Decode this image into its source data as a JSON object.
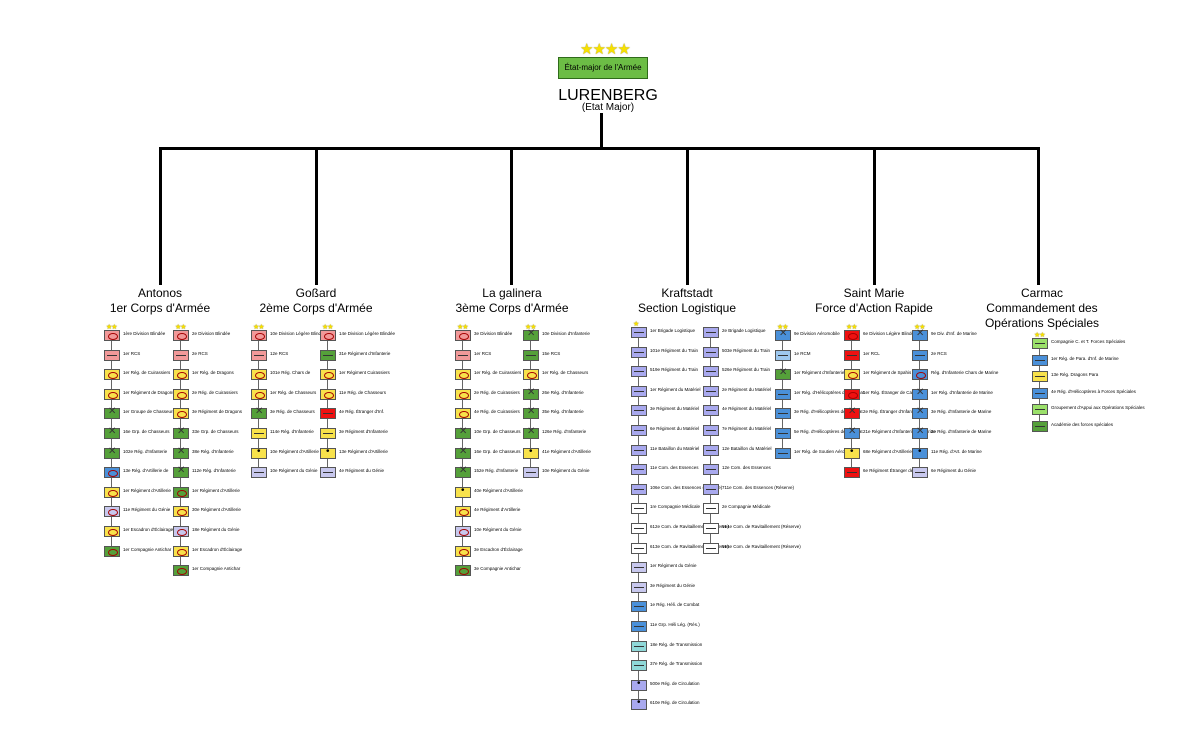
{
  "hq": {
    "stars": "★★★★",
    "label": "État-major de l'Armée",
    "title": "LURENBERG",
    "subtitle": "(Etat Major)"
  },
  "corps": [
    {
      "line1": "Antonos",
      "line2": "1er Corps d'Armée",
      "columns": [
        [
          {
            "stars": "★★",
            "label": "1ère Division Blindée",
            "color": "#f19999",
            "sym": "oval"
          },
          {
            "label": "1er RCS",
            "color": "#f19999",
            "sym": "line"
          },
          {
            "label": "1er Rég. de Cuirassiers",
            "color": "#f8e24b",
            "sym": "oval"
          },
          {
            "label": "1er Régiment de Dragons",
            "color": "#f8e24b",
            "sym": "oval"
          },
          {
            "label": "1er Groupe de Chasseurs",
            "color": "#55a03a",
            "sym": "cross"
          },
          {
            "label": "16e Grp. de Chasseurs",
            "color": "#55a03a",
            "sym": "cross"
          },
          {
            "label": "102e Rég. d'Infanterie",
            "color": "#55a03a",
            "sym": "cross"
          },
          {
            "label": "13e Rég. d'Artillerie de",
            "color": "#4a90d9",
            "sym": "oval"
          },
          {
            "label": "1er Régiment d'Artillerie",
            "color": "#f8e24b",
            "sym": "oval"
          },
          {
            "label": "11e Régiment du Génie",
            "color": "#c8c8ee",
            "sym": "oval"
          },
          {
            "label": "1er Escadron d'Éclairage",
            "color": "#f8e24b",
            "sym": "oval"
          },
          {
            "label": "1er Compagnie Antichar",
            "color": "#55a03a",
            "sym": "oval"
          }
        ],
        [
          {
            "stars": "★★",
            "label": "2e Division Blindée",
            "color": "#f19999",
            "sym": "oval"
          },
          {
            "label": "2e RCS",
            "color": "#f19999",
            "sym": "line"
          },
          {
            "label": "1er Rég. de Dragons",
            "color": "#f8e24b",
            "sym": "oval"
          },
          {
            "label": "2e Rég. de Cuirassiers",
            "color": "#f8e24b",
            "sym": "oval"
          },
          {
            "label": "3e Régiment de Dragons",
            "color": "#f8e24b",
            "sym": "oval"
          },
          {
            "label": "33e Grp. de Chasseurs",
            "color": "#55a03a",
            "sym": "cross"
          },
          {
            "label": "38e Rég. d'Infanterie",
            "color": "#55a03a",
            "sym": "cross"
          },
          {
            "label": "112e Rég. d'Infanterie",
            "color": "#55a03a",
            "sym": "cross"
          },
          {
            "label": "1er Régiment d'Artillerie",
            "color": "#55a03a",
            "sym": "oval"
          },
          {
            "label": "30e Régiment d'Artillerie",
            "color": "#f8e24b",
            "sym": "oval"
          },
          {
            "label": "18e Régiment du Génie",
            "color": "#c8c8ee",
            "sym": "oval"
          },
          {
            "label": "1er Escadron d'Éclairage",
            "color": "#f8e24b",
            "sym": "oval"
          },
          {
            "label": "1er Compagnie Antichar",
            "color": "#55a03a",
            "sym": "oval"
          }
        ]
      ]
    },
    {
      "line1": "Goßard",
      "line2": "2ème Corps d'Armée",
      "columns": [
        [
          {
            "stars": "★★",
            "label": "10e Division Légère Blindée",
            "color": "#f19999",
            "sym": "oval"
          },
          {
            "label": "12e RCS",
            "color": "#f19999",
            "sym": "line"
          },
          {
            "label": "101e Rég. Chars de",
            "color": "#f8e24b",
            "sym": "oval"
          },
          {
            "label": "1er Rég. de Chasseurs",
            "color": "#f8e24b",
            "sym": "oval"
          },
          {
            "label": "3e Rég. de Chasseurs",
            "color": "#55a03a",
            "sym": "cross"
          },
          {
            "label": "114e Rég. d'Infanterie",
            "color": "#f8e24b",
            "sym": "line"
          },
          {
            "label": "10e Régiment d'Artillerie",
            "color": "#f8e24b",
            "sym": "dot"
          },
          {
            "label": "10e Régiment du Génie",
            "color": "#c8c8ee",
            "sym": "line"
          }
        ],
        [
          {
            "stars": "★★",
            "label": "14e Division Légère Blindée",
            "color": "#f19999",
            "sym": "oval"
          },
          {
            "label": "31e Régiment d'Infanterie",
            "color": "#55a03a",
            "sym": "line"
          },
          {
            "label": "1er Régiment Cuirassiers",
            "color": "#f8e24b",
            "sym": "oval"
          },
          {
            "label": "11e Rég. de Chasseurs",
            "color": "#f8e24b",
            "sym": "oval"
          },
          {
            "label": "4e Rég. Étranger d'Inf.",
            "color": "#ee1111",
            "sym": "line"
          },
          {
            "label": "3e Régiment d'Infanterie",
            "color": "#f8e24b",
            "sym": "line"
          },
          {
            "label": "13e Régiment d'Artillerie",
            "color": "#f8e24b",
            "sym": "dot"
          },
          {
            "label": "4e Régiment du Génie",
            "color": "#c8c8ee",
            "sym": "line"
          }
        ]
      ]
    },
    {
      "line1": "La galinera",
      "line2": "3ème Corps d'Armée",
      "columns": [
        [
          {
            "stars": "★★",
            "label": "3e Division Blindée",
            "color": "#f19999",
            "sym": "oval"
          },
          {
            "label": "1er RCS",
            "color": "#f19999",
            "sym": "line"
          },
          {
            "label": "1er Rég. de Cuirassiers",
            "color": "#f8e24b",
            "sym": "oval"
          },
          {
            "label": "2e Rég. de Cuirassiers",
            "color": "#f8e24b",
            "sym": "oval"
          },
          {
            "label": "4e Rég. de Cuirassiers",
            "color": "#f8e24b",
            "sym": "oval"
          },
          {
            "label": "10e Grp. de Chasseurs",
            "color": "#55a03a",
            "sym": "cross"
          },
          {
            "label": "16e Grp. de Chasseurs",
            "color": "#55a03a",
            "sym": "cross"
          },
          {
            "label": "152e Rég. d'Infanterie",
            "color": "#55a03a",
            "sym": "cross"
          },
          {
            "label": "40e Régiment d'Artillerie",
            "color": "#f8e24b",
            "sym": "dot"
          },
          {
            "label": "4e Régiment d'Artillerie",
            "color": "#f8e24b",
            "sym": "oval"
          },
          {
            "label": "10e Régiment du Génie",
            "color": "#c8c8ee",
            "sym": "oval"
          },
          {
            "label": "3e Escadron d'Éclairage",
            "color": "#f8e24b",
            "sym": "oval"
          },
          {
            "label": "3e Compagnie Antichar",
            "color": "#55a03a",
            "sym": "oval"
          }
        ],
        [
          {
            "stars": "★★",
            "label": "10e Division d'Infanterie",
            "color": "#55a03a",
            "sym": "cross"
          },
          {
            "label": "15e RCS",
            "color": "#55a03a",
            "sym": "line"
          },
          {
            "label": "1er Rég. de Chasseurs",
            "color": "#f8e24b",
            "sym": "oval"
          },
          {
            "label": "26e Rég. d'Infanterie",
            "color": "#55a03a",
            "sym": "cross"
          },
          {
            "label": "35e Rég. d'Infanterie",
            "color": "#55a03a",
            "sym": "cross"
          },
          {
            "label": "126e Rég. d'Infanterie",
            "color": "#55a03a",
            "sym": "cross"
          },
          {
            "label": "41e Régiment d'Artillerie",
            "color": "#f8e24b",
            "sym": "dot"
          },
          {
            "label": "10e Régiment du Génie",
            "color": "#c8c8ee",
            "sym": "line"
          }
        ]
      ]
    },
    {
      "line1": "Kraftstadt",
      "line2": "Section Logistique",
      "columns": [
        [
          {
            "stars": "★",
            "label": "1er Brigade Logistique",
            "color": "#a9a9ee",
            "sym": "line"
          },
          {
            "label": "101e Régiment du Train",
            "color": "#a9a9ee",
            "sym": "line"
          },
          {
            "label": "519e Régiment du Train",
            "color": "#a9a9ee",
            "sym": "line"
          },
          {
            "label": "1er Régiment du Matériel",
            "color": "#a9a9ee",
            "sym": "line"
          },
          {
            "label": "3e Régiment du Matériel",
            "color": "#a9a9ee",
            "sym": "line"
          },
          {
            "label": "6e Régiment du Matériel",
            "color": "#a9a9ee",
            "sym": "line"
          },
          {
            "label": "11e Bataillon du Matériel",
            "color": "#a9a9ee",
            "sym": "line"
          },
          {
            "label": "11e Com. des Essences",
            "color": "#a9a9ee",
            "sym": "line"
          },
          {
            "label": "106e Com. des Essences (Réserve)",
            "color": "#a9a9ee",
            "sym": "line"
          },
          {
            "label": "1re Compagnie Médicale",
            "color": "#ffffff",
            "sym": "line"
          },
          {
            "label": "612e Com. de Ravitaillement (Réserve)",
            "color": "#ffffff",
            "sym": "line"
          },
          {
            "label": "613e Com. de Ravitaillement (Réserve)",
            "color": "#ffffff",
            "sym": "line"
          },
          {
            "label": "1er Régiment du Génie",
            "color": "#c8c8ee",
            "sym": "line"
          },
          {
            "label": "3e Régiment du Génie",
            "color": "#c8c8ee",
            "sym": "line"
          },
          {
            "label": "1e Rég. Héli. de Combat",
            "color": "#4a90d9",
            "sym": "line"
          },
          {
            "label": "11e Grp. Héli Lég. (Rés.)",
            "color": "#4a90d9",
            "sym": "line"
          },
          {
            "label": "18e Rég. de Transmission",
            "color": "#8fd8d8",
            "sym": "line"
          },
          {
            "label": "37e Rég. de Transmission",
            "color": "#8fd8d8",
            "sym": "line"
          },
          {
            "label": "500e Rég. de Circulation",
            "color": "#a9a9ee",
            "sym": "dot"
          },
          {
            "label": "610e Rég. de Circulation",
            "color": "#a9a9ee",
            "sym": "dot"
          }
        ],
        [
          {
            "label": "2e Brigade Logistique",
            "color": "#a9a9ee",
            "sym": "line"
          },
          {
            "label": "503e Régiment du Train",
            "color": "#a9a9ee",
            "sym": "line"
          },
          {
            "label": "526e Régiment du Train",
            "color": "#a9a9ee",
            "sym": "line"
          },
          {
            "label": "2e Régiment du Matériel",
            "color": "#a9a9ee",
            "sym": "line"
          },
          {
            "label": "4e Régiment du Matériel",
            "color": "#a9a9ee",
            "sym": "line"
          },
          {
            "label": "7e Régiment du Matériel",
            "color": "#a9a9ee",
            "sym": "line"
          },
          {
            "label": "12e Bataillon du Matériel",
            "color": "#a9a9ee",
            "sym": "line"
          },
          {
            "label": "12e Com. des Essences",
            "color": "#a9a9ee",
            "sym": "line"
          },
          {
            "label": "711e Com. des Essences (Réserve)",
            "color": "#a9a9ee",
            "sym": "line"
          },
          {
            "label": "2e Compagnie Médicale",
            "color": "#ffffff",
            "sym": "line"
          },
          {
            "label": "614e Com. de Ravitaillement (Réserve)",
            "color": "#ffffff",
            "sym": "line"
          },
          {
            "label": "615e Com. de Ravitaillement (Réserve)",
            "color": "#ffffff",
            "sym": "line"
          }
        ]
      ]
    },
    {
      "line1": "Saint Marie",
      "line2": "Force d'Action Rapide",
      "columns": [
        [
          {
            "stars": "★★",
            "label": "9e Division Aéromobile",
            "color": "#4a90d9",
            "sym": "cross"
          },
          {
            "label": "1e RCM",
            "color": "#9ec8ef",
            "sym": "line"
          },
          {
            "label": "1er Régiment d'Infanterie",
            "color": "#55a03a",
            "sym": "cross"
          },
          {
            "label": "1er Rég. d'Hélicoptères de Combat",
            "color": "#4a90d9",
            "sym": "line"
          },
          {
            "label": "3e Rég. d'Hélicoptères de Combat",
            "color": "#4a90d9",
            "sym": "line"
          },
          {
            "label": "5e Rég. d'Hélicoptères de Combat",
            "color": "#4a90d9",
            "sym": "line"
          },
          {
            "label": "1er Rég. de Soutien Aéromobile",
            "color": "#4a90d9",
            "sym": "line"
          }
        ],
        [
          {
            "stars": "★★",
            "label": "6e Division Légère Blindée",
            "color": "#ee1111",
            "sym": "oval"
          },
          {
            "label": "1er RCL",
            "color": "#ee1111",
            "sym": "line"
          },
          {
            "label": "1er Régiment de Spahis",
            "color": "#f8e24b",
            "sym": "oval"
          },
          {
            "label": "1er Rég. Étranger de Cavalerie",
            "color": "#ee1111",
            "sym": "oval"
          },
          {
            "label": "2e Rég. Étranger d'Infanterie",
            "color": "#ee1111",
            "sym": "cross"
          },
          {
            "label": "21e Régiment d'Infanterie de Marine",
            "color": "#4a90d9",
            "sym": "cross"
          },
          {
            "label": "68e Régiment d'Artillerie",
            "color": "#f8e24b",
            "sym": "dot"
          },
          {
            "label": "6e Régiment Étranger de Génie",
            "color": "#ee1111",
            "sym": "line"
          }
        ],
        [
          {
            "stars": "★★",
            "label": "9e Div. d'Inf. de Marine",
            "color": "#4a90d9",
            "sym": "cross"
          },
          {
            "label": "2e RCS",
            "color": "#4a90d9",
            "sym": "line"
          },
          {
            "label": "Rég. d'Infanterie Chars de Marine",
            "color": "#4a90d9",
            "sym": "oval"
          },
          {
            "label": "1er Rég. d'Infanterie de Marine",
            "color": "#4a90d9",
            "sym": "cross"
          },
          {
            "label": "3e Rég. d'Infanterie de Marine",
            "color": "#4a90d9",
            "sym": "cross"
          },
          {
            "label": "2e Rég. d'Infanterie de Marine",
            "color": "#4a90d9",
            "sym": "cross"
          },
          {
            "label": "11e Rég. d'Art. de Marine",
            "color": "#4a90d9",
            "sym": "dot"
          },
          {
            "label": "6e Régiment du Génie",
            "color": "#c8c8ee",
            "sym": "line"
          }
        ]
      ]
    },
    {
      "line1": "Carmac",
      "line2": "Commandement des Opérations Spéciales",
      "columns": [
        [
          {
            "stars": "★★",
            "label": "Compagnie C. et T. Forces Spéciales",
            "color": "#9be06a",
            "sym": "line"
          },
          {
            "label": "1er Rég. de Para. d'Inf. de Marine",
            "color": "#4a90d9",
            "sym": "line"
          },
          {
            "label": "13e Rég. Dragons Para",
            "color": "#f8e24b",
            "sym": "line"
          },
          {
            "label": "4e Rég. d'Hélicoptères à Forces Spéciales",
            "color": "#4a90d9",
            "sym": "line"
          },
          {
            "label": "Groupement d'Appui aux Opérations Spéciales",
            "color": "#9be06a",
            "sym": "line"
          },
          {
            "label": "Académie des forces spéciales",
            "color": "#55a03a",
            "sym": "line"
          }
        ]
      ]
    }
  ]
}
